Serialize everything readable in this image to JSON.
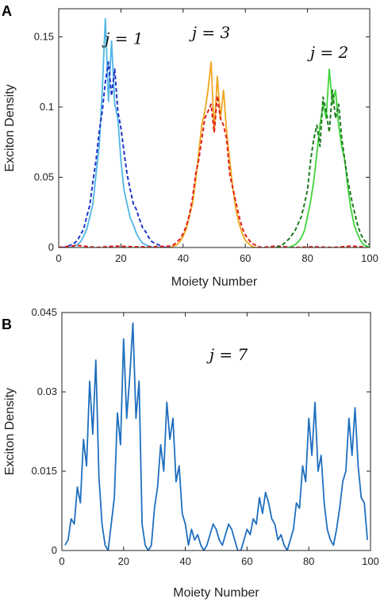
{
  "chart_data": [
    {
      "type": "line",
      "panel_label": "A",
      "xlabel": "Moiety Number",
      "ylabel": "Exciton Density",
      "xlim": [
        0,
        100
      ],
      "ylim": [
        0,
        0.17
      ],
      "xticks": [
        0,
        20,
        40,
        60,
        80,
        100
      ],
      "yticks": [
        0,
        0.05,
        0.1,
        0.15
      ],
      "ytick_labels": [
        "0",
        "0.05",
        "0.1",
        "0.15"
      ],
      "grid": false,
      "annotations": [
        {
          "text": "j = 1",
          "x": 21,
          "y": 0.145
        },
        {
          "text": "j = 3",
          "x": 49,
          "y": 0.149
        },
        {
          "text": "j = 2",
          "x": 87,
          "y": 0.135
        }
      ],
      "series": [
        {
          "style": "solid",
          "color": "#4fb5e6",
          "x": [
            1,
            2,
            3,
            4,
            5,
            6,
            7,
            8,
            9,
            10,
            11,
            12,
            13,
            14,
            15,
            16,
            17,
            18,
            19,
            20,
            21,
            22,
            23,
            24,
            25,
            26,
            27,
            28,
            29,
            30,
            31,
            32,
            33,
            34,
            35,
            36
          ],
          "y": [
            0,
            0,
            0,
            0,
            0.001,
            0.002,
            0.004,
            0.008,
            0.013,
            0.022,
            0.031,
            0.052,
            0.072,
            0.112,
            0.163,
            0.104,
            0.147,
            0.102,
            0.092,
            0.062,
            0.041,
            0.031,
            0.021,
            0.016,
            0.01,
            0.006,
            0.003,
            0.002,
            0.001,
            0,
            0,
            0,
            0,
            0,
            0,
            0
          ]
        },
        {
          "style": "dashed",
          "color": "#1f35c8",
          "x": [
            1,
            2,
            3,
            4,
            5,
            6,
            7,
            8,
            9,
            10,
            11,
            12,
            13,
            14,
            15,
            16,
            17,
            18,
            19,
            20,
            21,
            22,
            23,
            24,
            25,
            26,
            27,
            28,
            29,
            30,
            31,
            32,
            33,
            34,
            35,
            36
          ],
          "y": [
            0,
            0,
            0.001,
            0.002,
            0.003,
            0.005,
            0.009,
            0.013,
            0.022,
            0.03,
            0.047,
            0.062,
            0.082,
            0.097,
            0.118,
            0.132,
            0.108,
            0.127,
            0.097,
            0.085,
            0.068,
            0.052,
            0.041,
            0.031,
            0.027,
            0.02,
            0.014,
            0.011,
            0.007,
            0.004,
            0.003,
            0.002,
            0.001,
            0,
            0,
            0
          ]
        },
        {
          "style": "solid",
          "color": "#f0a51e",
          "x": [
            36,
            37,
            38,
            39,
            40,
            41,
            42,
            43,
            44,
            45,
            46,
            47,
            48,
            49,
            50,
            51,
            52,
            53,
            54,
            55,
            56,
            57,
            58,
            59,
            60,
            61,
            62,
            63,
            64
          ],
          "y": [
            0,
            0.001,
            0.002,
            0.004,
            0.008,
            0.013,
            0.022,
            0.031,
            0.047,
            0.067,
            0.087,
            0.097,
            0.112,
            0.132,
            0.082,
            0.122,
            0.092,
            0.112,
            0.082,
            0.062,
            0.042,
            0.027,
            0.017,
            0.01,
            0.005,
            0.003,
            0.001,
            0,
            0
          ]
        },
        {
          "style": "dashed",
          "color": "#e0221b",
          "x": [
            0,
            6,
            12,
            18,
            24,
            30,
            36,
            37,
            38,
            39,
            40,
            41,
            42,
            43,
            44,
            45,
            46,
            47,
            48,
            49,
            50,
            51,
            52,
            53,
            54,
            55,
            56,
            57,
            58,
            59,
            60,
            61,
            62,
            63,
            64,
            65,
            70,
            76,
            82,
            88,
            94,
            100
          ],
          "y": [
            0,
            0.0015,
            0,
            0.001,
            0.0005,
            0.0005,
            0.001,
            0.002,
            0.004,
            0.006,
            0.01,
            0.015,
            0.023,
            0.035,
            0.052,
            0.062,
            0.077,
            0.092,
            0.097,
            0.102,
            0.082,
            0.108,
            0.092,
            0.087,
            0.077,
            0.052,
            0.042,
            0.032,
            0.022,
            0.014,
            0.009,
            0.006,
            0.003,
            0.002,
            0.001,
            0,
            0.001,
            0,
            0.0005,
            0,
            0.001,
            0
          ]
        },
        {
          "style": "solid",
          "color": "#3fd43a",
          "x": [
            74,
            75,
            76,
            77,
            78,
            79,
            80,
            81,
            82,
            83,
            84,
            85,
            86,
            87,
            88,
            89,
            90,
            91,
            92,
            93,
            94,
            95,
            96,
            97,
            98,
            99,
            100
          ],
          "y": [
            0,
            0.001,
            0.002,
            0.004,
            0.007,
            0.012,
            0.022,
            0.033,
            0.047,
            0.067,
            0.087,
            0.102,
            0.092,
            0.127,
            0.102,
            0.112,
            0.087,
            0.072,
            0.062,
            0.042,
            0.027,
            0.016,
            0.01,
            0.005,
            0.002,
            0.001,
            0
          ]
        },
        {
          "style": "dashed",
          "color": "#1e7a1e",
          "x": [
            70,
            71,
            72,
            73,
            74,
            75,
            76,
            77,
            78,
            79,
            80,
            81,
            82,
            83,
            84,
            85,
            86,
            87,
            88,
            89,
            90,
            91,
            92,
            93,
            94,
            95,
            96,
            97,
            98,
            99,
            100
          ],
          "y": [
            0,
            0.001,
            0.002,
            0.004,
            0.006,
            0.009,
            0.012,
            0.017,
            0.022,
            0.031,
            0.041,
            0.062,
            0.077,
            0.087,
            0.072,
            0.107,
            0.097,
            0.082,
            0.112,
            0.092,
            0.102,
            0.078,
            0.062,
            0.047,
            0.036,
            0.026,
            0.017,
            0.01,
            0.006,
            0.003,
            0.002
          ]
        }
      ]
    },
    {
      "type": "line",
      "panel_label": "B",
      "xlabel": "Moiety Number",
      "ylabel": "Exciton Density",
      "xlim": [
        0,
        100
      ],
      "ylim": [
        0,
        0.045
      ],
      "xticks": [
        0,
        20,
        40,
        60,
        80,
        100
      ],
      "yticks": [
        0,
        0.015,
        0.03,
        0.045
      ],
      "ytick_labels": [
        "0",
        "0.015",
        "0.03",
        "0.045"
      ],
      "grid": false,
      "annotations": [
        {
          "text": "j = 7",
          "x": 54,
          "y": 0.036
        }
      ],
      "series": [
        {
          "style": "solid",
          "color": "#1f6fbf",
          "x": [
            1,
            2,
            3,
            4,
            5,
            6,
            7,
            8,
            9,
            10,
            11,
            12,
            13,
            14,
            15,
            16,
            17,
            18,
            19,
            20,
            21,
            22,
            23,
            24,
            25,
            26,
            27,
            28,
            29,
            30,
            31,
            32,
            33,
            34,
            35,
            36,
            37,
            38,
            39,
            40,
            41,
            42,
            43,
            44,
            45,
            46,
            47,
            48,
            49,
            50,
            51,
            52,
            53,
            54,
            55,
            56,
            57,
            58,
            59,
            60,
            61,
            62,
            63,
            64,
            65,
            66,
            67,
            68,
            69,
            70,
            71,
            72,
            73,
            74,
            75,
            76,
            77,
            78,
            79,
            80,
            81,
            82,
            83,
            84,
            85,
            86,
            87,
            88,
            89,
            90,
            91,
            92,
            93,
            94,
            95,
            96,
            97,
            98,
            99
          ],
          "y": [
            0.001,
            0.002,
            0.006,
            0.005,
            0.012,
            0.009,
            0.021,
            0.016,
            0.032,
            0.022,
            0.036,
            0.014,
            0.005,
            0.001,
            0,
            0.005,
            0.01,
            0.026,
            0.02,
            0.04,
            0.025,
            0.033,
            0.043,
            0.025,
            0.032,
            0.005,
            0.001,
            0,
            0.001,
            0.008,
            0.012,
            0.02,
            0.015,
            0.028,
            0.021,
            0.025,
            0.013,
            0.016,
            0.007,
            0.005,
            0.001,
            0.004,
            0.002,
            0.003,
            0.001,
            0,
            0.001,
            0.003,
            0.005,
            0.004,
            0.002,
            0.001,
            0.003,
            0.005,
            0.004,
            0.002,
            0,
            0,
            0.002,
            0.004,
            0.003,
            0.006,
            0.005,
            0.01,
            0.007,
            0.011,
            0.009,
            0.006,
            0.005,
            0.002,
            0.003,
            0.001,
            0,
            0.002,
            0.004,
            0.009,
            0.008,
            0.016,
            0.013,
            0.025,
            0.018,
            0.028,
            0.015,
            0.018,
            0.009,
            0.004,
            0.002,
            0.001,
            0.004,
            0.008,
            0.013,
            0.015,
            0.025,
            0.018,
            0.027,
            0.016,
            0.01,
            0.009,
            0.002
          ]
        }
      ]
    }
  ]
}
